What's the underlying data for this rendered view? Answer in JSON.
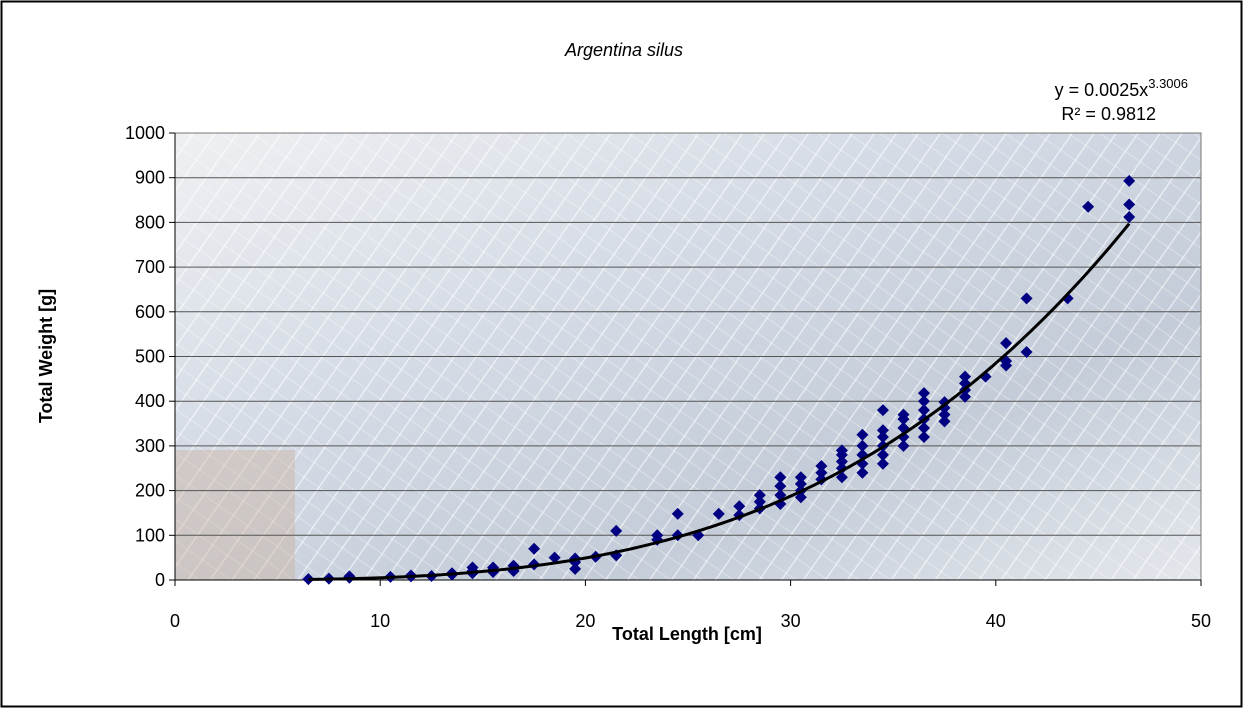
{
  "chart_data": {
    "type": "scatter",
    "title": "Argentina silus",
    "x_label": "Total Length [cm]",
    "y_label": "Total Weight [g]",
    "xlim": [
      0,
      50
    ],
    "xticks": [
      0,
      10,
      20,
      30,
      40,
      50
    ],
    "ylim": [
      0,
      1000
    ],
    "yticks": [
      0,
      100,
      200,
      300,
      400,
      500,
      600,
      700,
      800,
      900,
      1000
    ],
    "grid": true,
    "series": [
      {
        "color": "#000080",
        "x": [
          6.5,
          7.5,
          8.5,
          8.5,
          10.5,
          11.5,
          11.5,
          12.5,
          13.5,
          13.5,
          14.5,
          14.5,
          14.5,
          15.5,
          15.5,
          15.5,
          16.5,
          16.5,
          16.5,
          17.5,
          17.5,
          18.5,
          19.5,
          19.5,
          19.5,
          20.5,
          21.5,
          21.5,
          23.5,
          23.5,
          24.5,
          24.5,
          25.5,
          26.5,
          27.5,
          27.5,
          28.5,
          28.5,
          28.5,
          29.5,
          29.5,
          29.5,
          29.5,
          30.5,
          30.5,
          30.5,
          30.5,
          31.5,
          31.5,
          31.5,
          32.5,
          32.5,
          32.5,
          32.5,
          32.5,
          33.5,
          33.5,
          33.5,
          33.5,
          33.5,
          34.5,
          34.5,
          34.5,
          34.5,
          34.5,
          34.5,
          35.5,
          35.5,
          35.5,
          35.5,
          35.5,
          36.5,
          36.5,
          36.5,
          36.5,
          36.5,
          36.5,
          37.5,
          37.5,
          37.5,
          37.5,
          38.5,
          38.5,
          38.5,
          38.5,
          39.5,
          40.5,
          40.5,
          40.5,
          41.5,
          41.5,
          43.5,
          44.5,
          46.5,
          46.5,
          46.5
        ],
        "values": [
          2,
          3,
          5,
          8,
          7,
          8,
          10,
          9,
          12,
          15,
          15,
          20,
          28,
          18,
          22,
          28,
          20,
          25,
          32,
          35,
          70,
          50,
          25,
          40,
          48,
          52,
          55,
          110,
          90,
          100,
          100,
          148,
          100,
          148,
          145,
          165,
          160,
          175,
          190,
          170,
          190,
          210,
          230,
          185,
          200,
          215,
          230,
          225,
          240,
          255,
          230,
          250,
          265,
          280,
          290,
          240,
          260,
          280,
          300,
          325,
          260,
          280,
          300,
          320,
          335,
          380,
          300,
          320,
          340,
          360,
          370,
          320,
          340,
          360,
          380,
          400,
          418,
          355,
          370,
          385,
          398,
          410,
          425,
          440,
          455,
          455,
          480,
          490,
          530,
          510,
          630,
          630,
          835,
          812,
          840,
          893
        ]
      }
    ],
    "trendline": {
      "prefix": "y = ",
      "coefficient": 0.0025,
      "variable": "x",
      "exponent": 3.3006,
      "r_squared_prefix": "R² = ",
      "r_squared": 0.9812,
      "color": "#000000"
    }
  }
}
